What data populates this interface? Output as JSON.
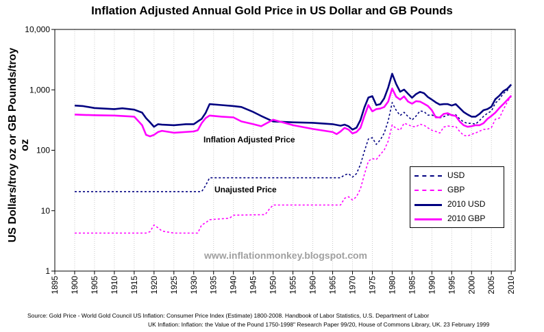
{
  "title": "Inflation Adjusted Annual Gold Price in US Dollar and GB Pounds",
  "ylabel": "US Dollars/troy oz or GB Pounds/troy oz",
  "annotations": {
    "adjusted": "Inflation Adjusted Price",
    "unadjusted": "Unajusted Price"
  },
  "watermark": "www.inflationmonkey.blogspot.com",
  "legend": [
    {
      "label": "USD",
      "color": "#000080",
      "style": "dashed"
    },
    {
      "label": "GBP",
      "color": "#ff00ff",
      "style": "dashed"
    },
    {
      "label": "2010 USD",
      "color": "#000080",
      "style": "solid"
    },
    {
      "label": "2010 GBP",
      "color": "#ff00ff",
      "style": "solid"
    }
  ],
  "source": {
    "line1": "Source:  Gold Price  - World Gold Council  US Inflation:  Consumer Price Index (Estimate) 1800-2008. Handbook of Labor Statistics, U.S. Department of Labor",
    "line2": "UK Inflation:  Inflation: the Value of the Pound 1750-1998\" Research Paper 99/20, House of Commons Library, UK. 23 February 1999"
  },
  "chart_data": {
    "type": "line",
    "title": "Inflation Adjusted Annual Gold Price in US Dollar and GB Pounds",
    "xlabel": "",
    "ylabel": "US Dollars/troy oz or GB Pounds/troy oz",
    "yscale": "log",
    "xlim": [
      1895,
      2011
    ],
    "ylim": [
      1,
      10000
    ],
    "xticks": [
      1895,
      1900,
      1905,
      1910,
      1915,
      1920,
      1925,
      1930,
      1935,
      1940,
      1945,
      1950,
      1955,
      1960,
      1965,
      1970,
      1975,
      1980,
      1985,
      1990,
      1995,
      2000,
      2005,
      2010
    ],
    "yticks": [
      1,
      10,
      100,
      1000,
      10000
    ],
    "ytick_labels": [
      "1",
      "10",
      "100",
      "1,000",
      "10,000"
    ],
    "grid": {
      "vertical": true,
      "horizontal": false
    },
    "series": [
      {
        "name": "USD",
        "style": "dashed",
        "color": "#000080",
        "x": [
          1900,
          1932,
          1933,
          1934,
          1967,
          1968,
          1969,
          1970,
          1971,
          1972,
          1973,
          1974,
          1975,
          1976,
          1977,
          1978,
          1979,
          1980,
          1981,
          1982,
          1983,
          1984,
          1985,
          1986,
          1987,
          1988,
          1989,
          1990,
          1991,
          1992,
          1993,
          1994,
          1995,
          1996,
          1997,
          1998,
          1999,
          2000,
          2001,
          2002,
          2003,
          2004,
          2005,
          2006,
          2007,
          2008,
          2009,
          2010
        ],
        "y": [
          20.67,
          20.67,
          26,
          35,
          35,
          39,
          41,
          36,
          41,
          58,
          97,
          154,
          161,
          125,
          148,
          193,
          306,
          615,
          460,
          376,
          424,
          361,
          317,
          368,
          447,
          437,
          381,
          383,
          362,
          344,
          360,
          384,
          384,
          388,
          331,
          294,
          279,
          279,
          271,
          310,
          364,
          409,
          445,
          604,
          696,
          872,
          972,
          1225
        ]
      },
      {
        "name": "GBP",
        "style": "dashed",
        "color": "#ff00ff",
        "x": [
          1900,
          1918,
          1919,
          1920,
          1921,
          1922,
          1925,
          1931,
          1932,
          1933,
          1934,
          1939,
          1940,
          1948,
          1949,
          1950,
          1967,
          1968,
          1969,
          1970,
          1971,
          1972,
          1973,
          1974,
          1975,
          1976,
          1977,
          1978,
          1979,
          1980,
          1981,
          1982,
          1983,
          1984,
          1985,
          1986,
          1987,
          1988,
          1989,
          1990,
          1991,
          1992,
          1993,
          1994,
          1995,
          1996,
          1997,
          1998,
          1999,
          2000,
          2001,
          2002,
          2003,
          2004,
          2005,
          2006,
          2007,
          2008,
          2009,
          2010
        ],
        "y": [
          4.25,
          4.25,
          4.5,
          5.8,
          5.2,
          4.6,
          4.25,
          4.25,
          5.8,
          6.3,
          7.1,
          7.5,
          8.4,
          8.6,
          10.5,
          12.4,
          12.4,
          16,
          17,
          15,
          17,
          23,
          40,
          66,
          73,
          70,
          85,
          101,
          142,
          262,
          230,
          215,
          280,
          265,
          248,
          245,
          270,
          260,
          235,
          214,
          205,
          193,
          242,
          252,
          247,
          248,
          205,
          176,
          172,
          184,
          193,
          207,
          221,
          223,
          237,
          326,
          340,
          470,
          630,
          790
        ]
      },
      {
        "name": "2010 USD",
        "style": "solid",
        "color": "#000080",
        "x": [
          1900,
          1902,
          1905,
          1910,
          1912,
          1915,
          1917,
          1918,
          1919,
          1920,
          1921,
          1922,
          1925,
          1928,
          1930,
          1931,
          1932,
          1933,
          1934,
          1937,
          1940,
          1942,
          1945,
          1947,
          1950,
          1955,
          1960,
          1965,
          1967,
          1968,
          1969,
          1970,
          1971,
          1972,
          1973,
          1974,
          1975,
          1976,
          1977,
          1978,
          1979,
          1980,
          1981,
          1982,
          1983,
          1984,
          1985,
          1986,
          1987,
          1988,
          1989,
          1990,
          1991,
          1992,
          1993,
          1994,
          1995,
          1996,
          1997,
          1998,
          1999,
          2000,
          2001,
          2002,
          2003,
          2004,
          2005,
          2006,
          2007,
          2008,
          2009,
          2010
        ],
        "y": [
          550,
          540,
          500,
          480,
          495,
          470,
          420,
          340,
          290,
          245,
          270,
          265,
          260,
          270,
          270,
          300,
          330,
          415,
          580,
          560,
          540,
          520,
          430,
          370,
          300,
          290,
          285,
          270,
          255,
          265,
          250,
          220,
          236,
          316,
          512,
          746,
          786,
          560,
          580,
          725,
          1090,
          1850,
          1250,
          930,
          1010,
          860,
          740,
          850,
          925,
          880,
          760,
          690,
          620,
          570,
          580,
          580,
          550,
          580,
          500,
          430,
          390,
          360,
          360,
          400,
          460,
          480,
          525,
          700,
          800,
          950,
          1040,
          1225
        ]
      },
      {
        "name": "2010 GBP",
        "style": "solid",
        "color": "#ff00ff",
        "x": [
          1900,
          1902,
          1905,
          1910,
          1912,
          1915,
          1917,
          1918,
          1919,
          1920,
          1921,
          1922,
          1925,
          1930,
          1931,
          1932,
          1933,
          1934,
          1937,
          1940,
          1942,
          1945,
          1947,
          1950,
          1955,
          1960,
          1965,
          1966,
          1967,
          1968,
          1969,
          1970,
          1971,
          1972,
          1973,
          1974,
          1975,
          1976,
          1977,
          1978,
          1979,
          1980,
          1981,
          1982,
          1983,
          1984,
          1985,
          1986,
          1987,
          1988,
          1989,
          1990,
          1991,
          1992,
          1993,
          1994,
          1995,
          1996,
          1997,
          1998,
          1999,
          2000,
          2001,
          2002,
          2003,
          2004,
          2005,
          2006,
          2007,
          2008,
          2009,
          2010
        ],
        "y": [
          390,
          385,
          380,
          375,
          370,
          360,
          260,
          180,
          170,
          180,
          200,
          210,
          195,
          205,
          215,
          280,
          340,
          375,
          360,
          350,
          300,
          270,
          250,
          320,
          260,
          225,
          200,
          185,
          205,
          235,
          220,
          190,
          200,
          235,
          370,
          560,
          440,
          480,
          490,
          520,
          640,
          1050,
          770,
          690,
          780,
          640,
          590,
          650,
          640,
          590,
          540,
          460,
          350,
          350,
          400,
          410,
          380,
          370,
          300,
          260,
          245,
          250,
          260,
          260,
          280,
          330,
          370,
          420,
          500,
          580,
          680,
          800
        ]
      }
    ]
  }
}
